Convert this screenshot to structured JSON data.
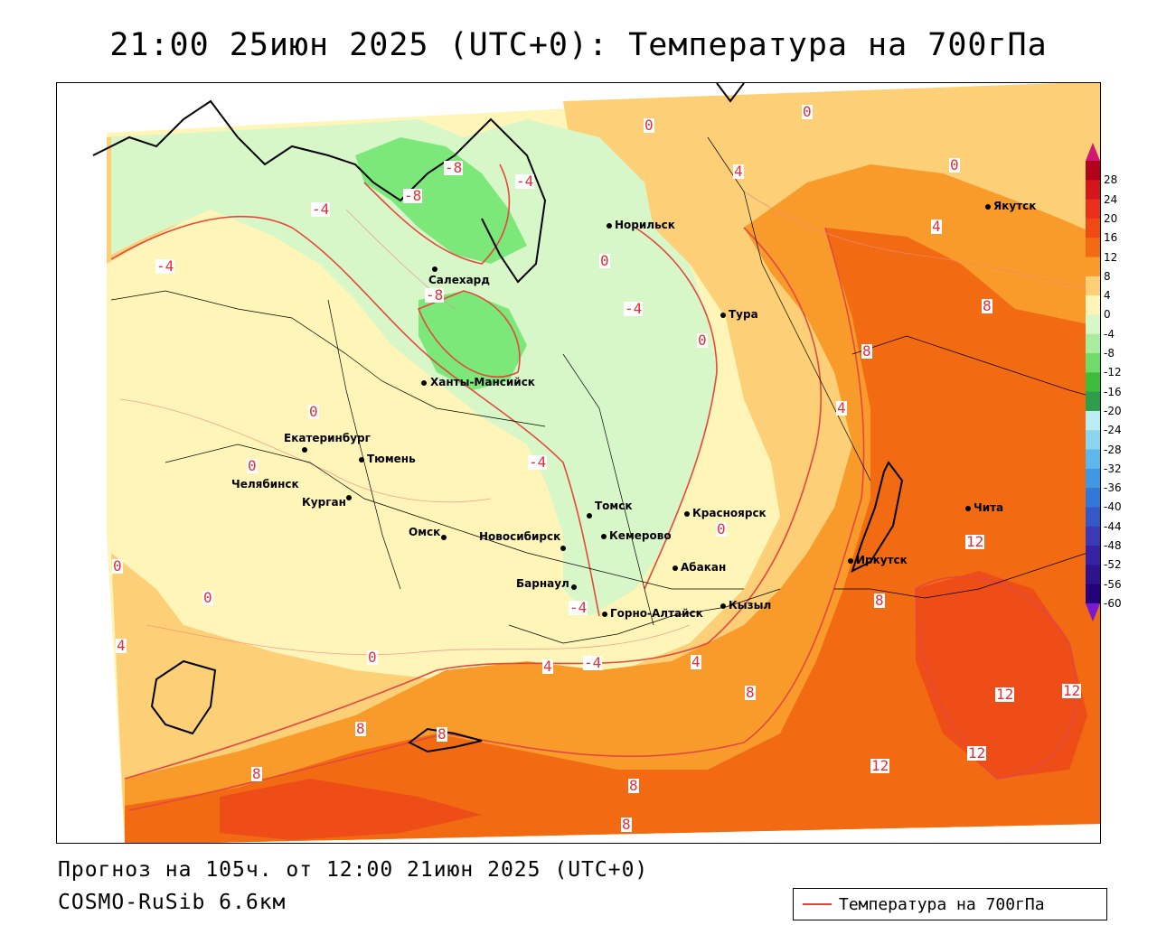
{
  "title": "21:00 25июн 2025 (UTC+0): Температура на 700гПа",
  "footer": {
    "forecast": "Прогноз на 105ч. от 12:00 21июн 2025 (UTC+0)",
    "model": "COSMO-RuSib 6.6км"
  },
  "legend": {
    "label": "Температура на 700гПа",
    "line_color": "#e3483f"
  },
  "colorbar": {
    "labels": [
      "28",
      "24",
      "20",
      "16",
      "12",
      "8",
      "4",
      "0",
      "-4",
      "-8",
      "-12",
      "-16",
      "-20",
      "-24",
      "-28",
      "-32",
      "-36",
      "-40",
      "-44",
      "-48",
      "-52",
      "-56",
      "-60"
    ],
    "colors": [
      "#b3001b",
      "#d3161b",
      "#e8301c",
      "#f04a14",
      "#f26a12",
      "#f99b2a",
      "#fdd078",
      "#fff5b8",
      "#d8f7c8",
      "#a8ec9e",
      "#6edc6a",
      "#3cbe3c",
      "#2c9e4a",
      "#b8eef4",
      "#8ad6f0",
      "#5cb8ec",
      "#3f98e4",
      "#3278d8",
      "#3458c6",
      "#3a3ab4",
      "#3622a4",
      "#2e1290",
      "#24007a"
    ]
  },
  "cities": [
    {
      "name": "Норильск"
    },
    {
      "name": "Якутск"
    },
    {
      "name": "Салехард"
    },
    {
      "name": "Тура"
    },
    {
      "name": "Ханты-Мансийск"
    },
    {
      "name": "Екатеринбург"
    },
    {
      "name": "Тюмень"
    },
    {
      "name": "Челябинск"
    },
    {
      "name": "Курган"
    },
    {
      "name": "Омск"
    },
    {
      "name": "Новосибирск"
    },
    {
      "name": "Томск"
    },
    {
      "name": "Кемерово"
    },
    {
      "name": "Красноярск"
    },
    {
      "name": "Барнаул"
    },
    {
      "name": "Абакан"
    },
    {
      "name": "Горно-Алтайск"
    },
    {
      "name": "Кызыл"
    },
    {
      "name": "Иркутск"
    },
    {
      "name": "Чита"
    }
  ],
  "contour_labels": [
    "0",
    "-8",
    "-8",
    "-4",
    "-4",
    "-8",
    "-4",
    "0",
    "4",
    "0",
    "4",
    "0",
    "-4",
    "0",
    "8",
    "4",
    "8",
    "0",
    "0",
    "-4",
    "0",
    "0",
    "-4",
    "0",
    "8",
    "12",
    "4",
    "0",
    "-4",
    "4",
    "8",
    "4",
    "8",
    "12",
    "12",
    "8",
    "12",
    "8",
    "12",
    "8",
    "8"
  ]
}
